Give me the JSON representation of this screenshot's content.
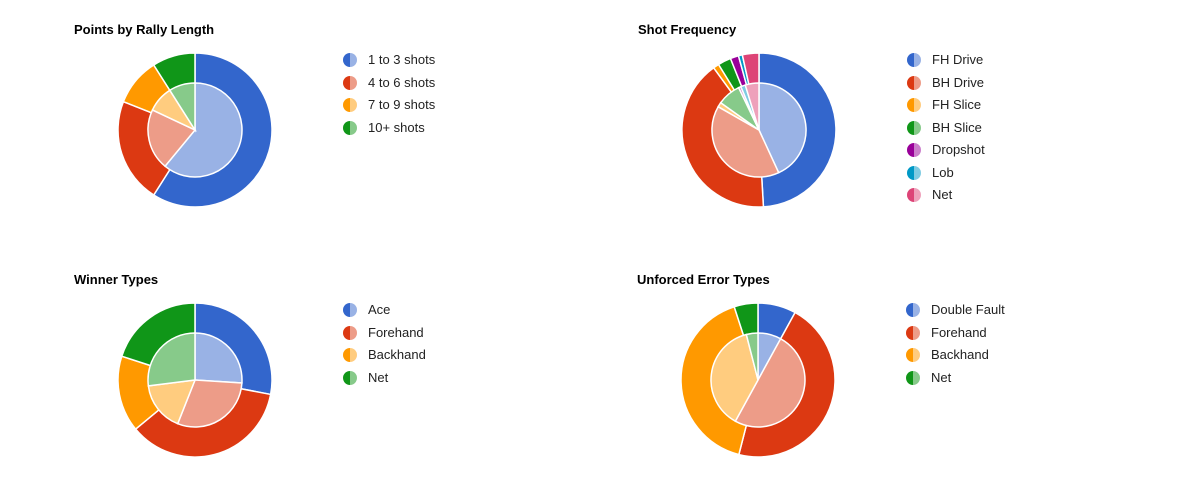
{
  "chart_data": [
    {
      "type": "pie",
      "title": "Points by Rally Length",
      "categories": [
        "1 to 3 shots",
        "4 to 6 shots",
        "7 to 9 shots",
        "10+ shots"
      ],
      "series": [
        {
          "ring": "outer",
          "values": [
            59,
            22,
            10,
            9
          ]
        },
        {
          "ring": "inner",
          "values": [
            61,
            21,
            9,
            9
          ]
        }
      ],
      "colors": {
        "outer": [
          "#3366cc",
          "#dc3912",
          "#ff9900",
          "#109618"
        ],
        "inner": [
          "#99b2e5",
          "#ed9c88",
          "#ffcc7f",
          "#87ca8a"
        ]
      },
      "legend": "right"
    },
    {
      "type": "pie",
      "title": "Shot Frequency",
      "categories": [
        "FH Drive",
        "BH Drive",
        "FH Slice",
        "BH Slice",
        "Dropshot",
        "Lob",
        "Net"
      ],
      "series": [
        {
          "ring": "outer",
          "values": [
            48,
            40,
            1.2,
            2.7,
            1.7,
            0.8,
            3.4
          ]
        },
        {
          "ring": "inner",
          "values": [
            43,
            40,
            1.6,
            8,
            0.8,
            1.6,
            4.7
          ]
        }
      ],
      "colors": {
        "outer": [
          "#3366cc",
          "#dc3912",
          "#ff9900",
          "#109618",
          "#990099",
          "#0099c6",
          "#dd4477"
        ],
        "inner": [
          "#99b2e5",
          "#ed9c88",
          "#ffcc7f",
          "#87ca8a",
          "#cb7fcb",
          "#7fcbe2",
          "#eea1bb"
        ]
      },
      "legend": "right"
    },
    {
      "type": "pie",
      "title": "Winner Types",
      "categories": [
        "Ace",
        "Forehand",
        "Backhand",
        "Net"
      ],
      "series": [
        {
          "ring": "outer",
          "values": [
            28,
            36,
            16,
            20
          ]
        },
        {
          "ring": "inner",
          "values": [
            26,
            30,
            17,
            27
          ]
        }
      ],
      "colors": {
        "outer": [
          "#3366cc",
          "#dc3912",
          "#ff9900",
          "#109618"
        ],
        "inner": [
          "#99b2e5",
          "#ed9c88",
          "#ffcc7f",
          "#87ca8a"
        ]
      },
      "legend": "right"
    },
    {
      "type": "pie",
      "title": "Unforced Error Types",
      "categories": [
        "Double Fault",
        "Forehand",
        "Backhand",
        "Net"
      ],
      "series": [
        {
          "ring": "outer",
          "values": [
            8,
            46,
            41,
            5
          ]
        },
        {
          "ring": "inner",
          "values": [
            8,
            50,
            38,
            4
          ]
        }
      ],
      "colors": {
        "outer": [
          "#3366cc",
          "#dc3912",
          "#ff9900",
          "#109618"
        ],
        "inner": [
          "#99b2e5",
          "#ed9c88",
          "#ffcc7f",
          "#87ca8a"
        ]
      },
      "legend": "right"
    }
  ]
}
